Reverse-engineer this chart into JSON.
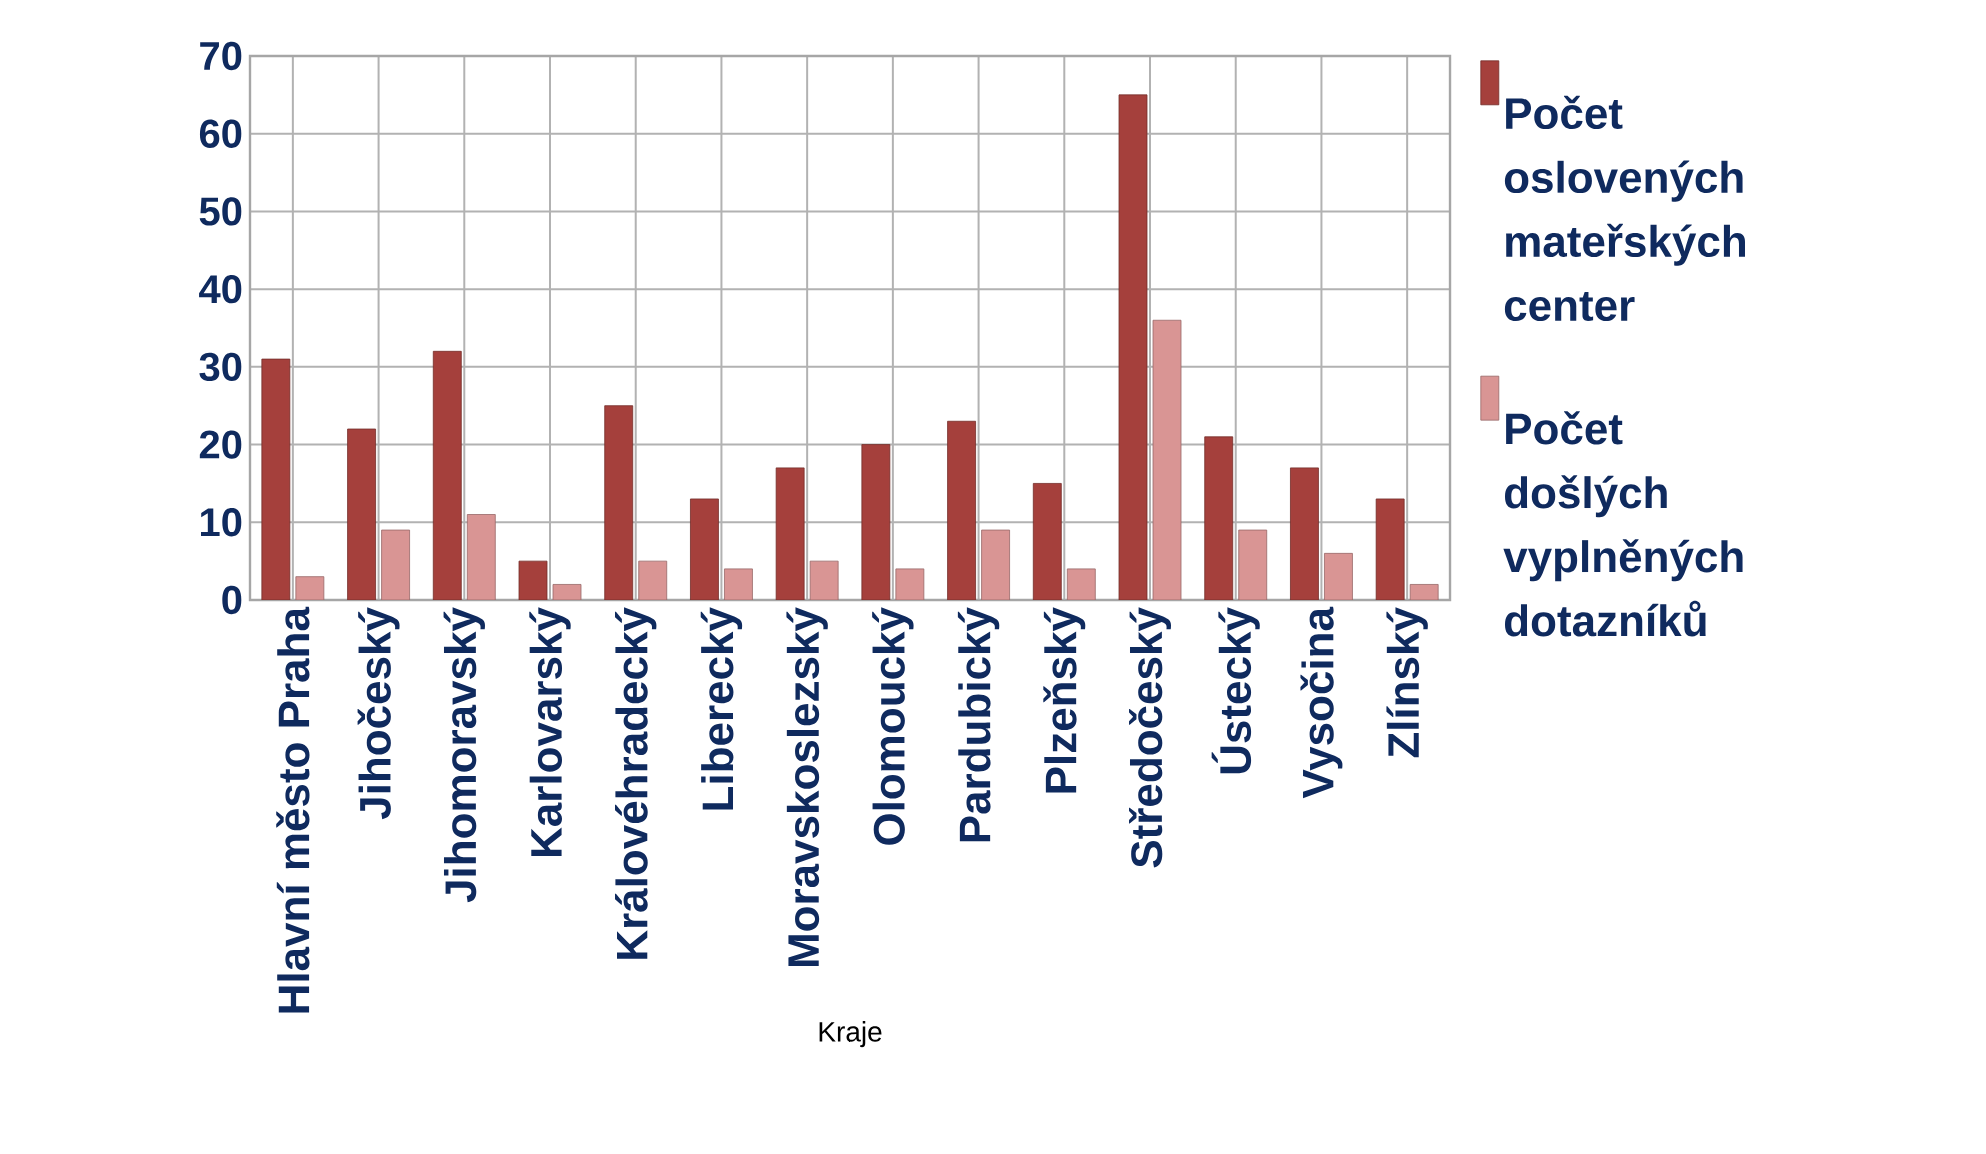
{
  "chart_data": {
    "type": "bar",
    "xlabel": "Kraje",
    "categories": [
      "Hlavní město Praha",
      "Jihočeský",
      "Jihomoravský",
      "Karlovarský",
      "Královéhradecký",
      "Liberecký",
      "Moravskoslezský",
      "Olomoucký",
      "Pardubický",
      "Plzeňský",
      "Středočeský",
      "Ústecký",
      "Vysočina",
      "Zlínský"
    ],
    "series": [
      {
        "name": "Počet oslovených mateřských center",
        "color": "#a5403c",
        "values": [
          31,
          22,
          32,
          5,
          25,
          13,
          17,
          20,
          23,
          15,
          65,
          21,
          17,
          13
        ]
      },
      {
        "name": "Počet došlých vyplněných dotazníků",
        "color": "#d99594",
        "values": [
          3,
          9,
          11,
          2,
          5,
          4,
          5,
          4,
          9,
          4,
          36,
          9,
          6,
          2
        ]
      }
    ],
    "ylim": [
      0,
      70
    ],
    "yticks": [
      0,
      10,
      20,
      30,
      40,
      50,
      60,
      70
    ],
    "grid": true,
    "legend": "right"
  }
}
